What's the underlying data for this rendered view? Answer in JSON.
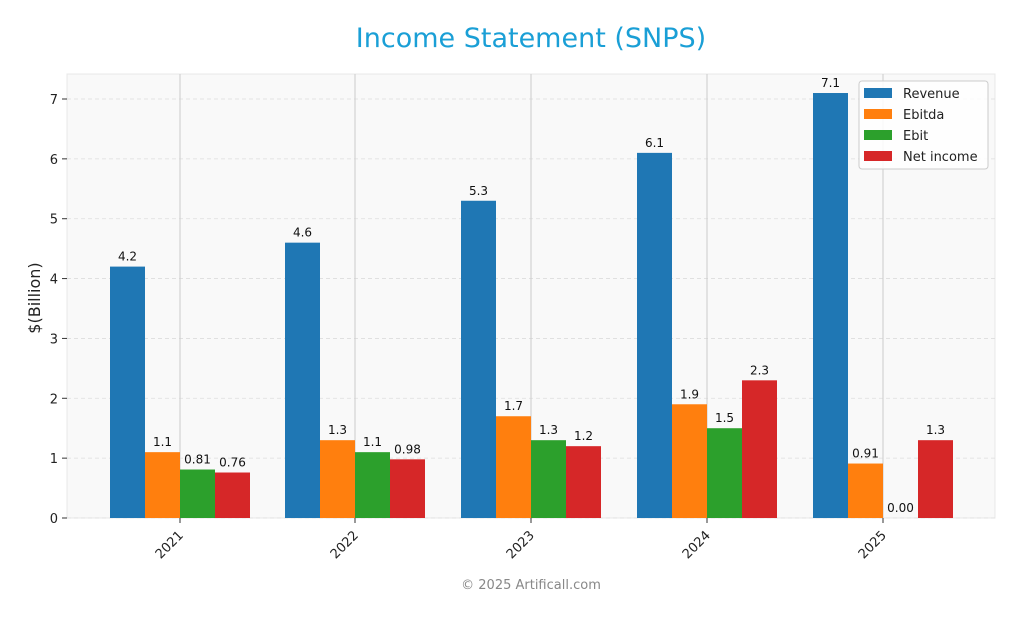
{
  "title": "Income Statement (SNPS)",
  "footer": "© 2025 Artificall.com",
  "colors": {
    "title": "#1a9fd6",
    "Revenue": "#1f77b4",
    "Ebitda": "#ff7f0e",
    "Ebit": "#2ca02c",
    "Net income": "#d62728"
  },
  "chart_data": {
    "type": "bar",
    "title": "Income Statement (SNPS)",
    "xlabel": "",
    "ylabel": "$(Billion)",
    "ylim": [
      0,
      7.4
    ],
    "yticks": [
      0,
      1,
      2,
      3,
      4,
      5,
      6,
      7
    ],
    "categories": [
      "2021",
      "2022",
      "2023",
      "2024",
      "2025"
    ],
    "series": [
      {
        "name": "Revenue",
        "values": [
          4.2,
          4.6,
          5.3,
          6.1,
          7.1
        ],
        "labels": [
          "4.2",
          "4.6",
          "5.3",
          "6.1",
          "7.1"
        ]
      },
      {
        "name": "Ebitda",
        "values": [
          1.1,
          1.3,
          1.7,
          1.9,
          0.91
        ],
        "labels": [
          "1.1",
          "1.3",
          "1.7",
          "1.9",
          "0.91"
        ]
      },
      {
        "name": "Ebit",
        "values": [
          0.81,
          1.1,
          1.3,
          1.5,
          0.0
        ],
        "labels": [
          "0.81",
          "1.1",
          "1.3",
          "1.5",
          "0.00"
        ]
      },
      {
        "name": "Net income",
        "values": [
          0.76,
          0.98,
          1.2,
          2.3,
          1.3
        ],
        "labels": [
          "0.76",
          "0.98",
          "1.2",
          "2.3",
          "1.3"
        ]
      }
    ],
    "legend_position": "upper right",
    "grid": true
  }
}
